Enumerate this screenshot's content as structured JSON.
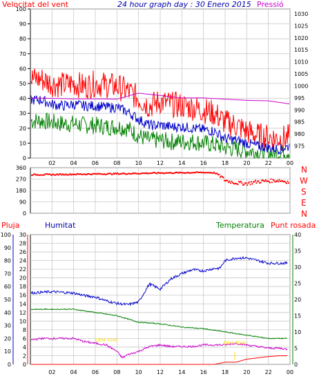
{
  "chart_data": [
    {
      "type": "line",
      "title": "24 hour graph day : 30 Enero 2015",
      "ylabel_left": "Velocitat del vent",
      "ylabel_right": "Pressió",
      "x_ticks": [
        "02",
        "04",
        "06",
        "08",
        "10",
        "12",
        "14",
        "16",
        "18",
        "20",
        "22",
        "00"
      ],
      "y_left_ticks": [
        "0",
        "10",
        "20",
        "30",
        "40",
        "50",
        "60",
        "70",
        "80",
        "90",
        "100"
      ],
      "y_right_ticks": [
        "975",
        "980",
        "985",
        "990",
        "995",
        "1000",
        "1005",
        "1010",
        "1015",
        "1020",
        "1025",
        "1030"
      ],
      "ylim_left": [
        0,
        100
      ],
      "ylim_right": [
        970,
        1032
      ],
      "colors": {
        "gust": "#ff0000",
        "avg": "#0000cc",
        "min": "#008000",
        "pressure": "#cc00cc"
      },
      "series": [
        {
          "name": "gust",
          "hours": [
            1,
            2,
            3,
            4,
            5,
            6,
            7,
            8,
            9,
            10,
            11,
            12,
            13,
            14,
            15,
            16,
            17,
            18,
            19,
            20,
            21,
            22,
            23,
            24
          ],
          "values": [
            53,
            50,
            49,
            50,
            48,
            50,
            49,
            48,
            45,
            40,
            35,
            38,
            36,
            35,
            34,
            32,
            30,
            24,
            22,
            18,
            15,
            14,
            13,
            14
          ]
        },
        {
          "name": "avg",
          "hours": [
            1,
            2,
            3,
            4,
            5,
            6,
            7,
            8,
            9,
            10,
            11,
            12,
            13,
            14,
            15,
            16,
            17,
            18,
            19,
            20,
            21,
            22,
            23,
            24
          ],
          "values": [
            39,
            36,
            35,
            36,
            35,
            35,
            34,
            34,
            31,
            26,
            22,
            22,
            21,
            21,
            20,
            19,
            18,
            13,
            12,
            10,
            8,
            7,
            6,
            8
          ]
        },
        {
          "name": "min",
          "hours": [
            1,
            2,
            3,
            4,
            5,
            6,
            7,
            8,
            9,
            10,
            11,
            12,
            13,
            14,
            15,
            16,
            17,
            18,
            19,
            20,
            21,
            22,
            23,
            24
          ],
          "values": [
            25,
            24,
            23,
            23,
            22,
            22,
            21,
            21,
            20,
            15,
            12,
            12,
            11,
            11,
            11,
            10,
            9,
            7,
            6,
            5,
            4,
            3,
            3,
            5
          ]
        },
        {
          "name": "pressure",
          "hours": [
            0,
            2,
            4,
            6,
            8,
            10,
            12,
            14,
            16,
            18,
            20,
            22,
            24
          ],
          "values": [
            995,
            994.8,
            994.6,
            994.6,
            994.5,
            997,
            996,
            995,
            995,
            994.5,
            994,
            993.8,
            992.5
          ]
        }
      ]
    },
    {
      "type": "scatter",
      "y_ticks": [
        "0",
        "90",
        "180",
        "270",
        "360"
      ],
      "ylim": [
        0,
        360
      ],
      "direction_labels": [
        "N",
        "W",
        "S",
        "E",
        "N"
      ],
      "color": "#ff0000",
      "series": [
        {
          "name": "direction",
          "hours": [
            0,
            2,
            4,
            6,
            8,
            10,
            12,
            14,
            16,
            17,
            17.5,
            18,
            19,
            20,
            21,
            22,
            23,
            24
          ],
          "values": [
            305,
            305,
            308,
            310,
            312,
            315,
            318,
            320,
            322,
            320,
            300,
            260,
            240,
            235,
            250,
            255,
            260,
            245
          ]
        }
      ]
    },
    {
      "type": "line",
      "labels": {
        "rain": "Pluja",
        "humidity": "Humitat",
        "temperature": "Temperatura",
        "dewpoint": "Punt rosada"
      },
      "x_ticks": [
        "02",
        "04",
        "06",
        "08",
        "10",
        "12",
        "14",
        "16",
        "18",
        "20",
        "22",
        "00"
      ],
      "rain_ticks": [
        "0",
        "2",
        "4",
        "6",
        "8",
        "10",
        "12",
        "14",
        "16",
        "18",
        "20",
        "22",
        "24",
        "26",
        "28",
        "30"
      ],
      "humidity_ticks": [
        "0",
        "10",
        "20",
        "30",
        "40",
        "50",
        "60",
        "70",
        "80",
        "90",
        "100"
      ],
      "temp_ticks": [
        "0",
        "5",
        "10",
        "15",
        "20",
        "25",
        "30",
        "35",
        "40"
      ],
      "ylim_rain": [
        0,
        30
      ],
      "ylim_humidity": [
        0,
        100
      ],
      "ylim_temp": [
        0,
        40
      ],
      "annotations": [
        "Dew Rise",
        "Dew Rise"
      ],
      "colors": {
        "rain": "#ff0000",
        "humidity": "#0000cc",
        "temperature": "#008000",
        "dewpoint": "#cc00cc",
        "annotation": "#ffdd00"
      },
      "series": [
        {
          "name": "humidity",
          "hours": [
            0,
            2,
            4,
            5,
            6,
            7,
            8,
            9,
            10,
            10.5,
            11,
            12,
            13,
            14,
            15,
            16,
            17,
            17.5,
            18,
            19,
            20,
            21,
            22,
            23,
            24
          ],
          "values": [
            55,
            56,
            55,
            53,
            52,
            49,
            47,
            46,
            48,
            55,
            62,
            58,
            66,
            70,
            73,
            72,
            74,
            74,
            80,
            82,
            82,
            80,
            78,
            78,
            78
          ]
        },
        {
          "name": "temperature",
          "hours": [
            0,
            2,
            4,
            5,
            6,
            7,
            8,
            9,
            10,
            12,
            14,
            16,
            17,
            18,
            19,
            20,
            21,
            22,
            23,
            24
          ],
          "values": [
            17,
            17,
            17,
            16.5,
            16,
            15.5,
            15,
            14,
            13,
            12.5,
            11.5,
            11,
            10.5,
            10,
            9.5,
            9,
            8.5,
            8,
            8,
            8
          ]
        },
        {
          "name": "dewpoint",
          "hours": [
            0,
            1,
            2,
            3,
            4,
            5,
            6,
            7,
            8,
            8.5,
            9,
            10,
            11,
            12,
            13,
            14,
            15,
            16,
            17,
            18,
            19,
            20,
            21,
            22,
            23,
            24
          ],
          "values": [
            7.5,
            8,
            8,
            8,
            8,
            7,
            6.5,
            6,
            4,
            2,
            3,
            4,
            5.5,
            6,
            5.5,
            5.5,
            5.5,
            6,
            6,
            6,
            6.5,
            6,
            5.5,
            5,
            5,
            4.5
          ]
        },
        {
          "name": "rain",
          "hours": [
            0,
            10,
            17,
            18,
            19,
            20,
            21,
            22,
            23,
            24
          ],
          "values": [
            0,
            0,
            0,
            0.5,
            0.5,
            1.2,
            1.5,
            1.8,
            2,
            2
          ]
        }
      ]
    }
  ]
}
